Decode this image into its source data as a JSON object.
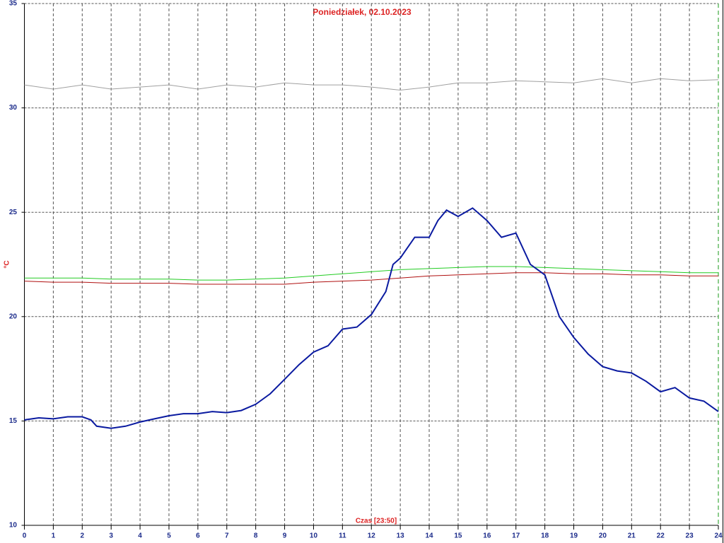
{
  "chart_data": {
    "type": "line",
    "title": "Poniedziałek, 02.10.2023",
    "y_label": "°C",
    "x_label": "Czas [23:50]",
    "xlim": [
      0,
      24
    ],
    "xticks": [
      0,
      1,
      2,
      3,
      4,
      5,
      6,
      7,
      8,
      9,
      10,
      11,
      12,
      13,
      14,
      15,
      16,
      17,
      18,
      19,
      20,
      21,
      22,
      23,
      24
    ],
    "ylim": [
      10,
      35
    ],
    "yticks": [
      10,
      15,
      20,
      25,
      30,
      35
    ],
    "grid": true,
    "series": [
      {
        "color": "#a0a0a0",
        "width": 1,
        "x": [
          0,
          1,
          2,
          3,
          4,
          5,
          6,
          7,
          8,
          9,
          10,
          11,
          12,
          13,
          14,
          15,
          16,
          17,
          18,
          19,
          20,
          21,
          22,
          23,
          24
        ],
        "values": [
          31.1,
          30.9,
          31.1,
          30.9,
          31.0,
          31.1,
          30.9,
          31.1,
          31.0,
          31.2,
          31.1,
          31.1,
          31.0,
          30.85,
          31.0,
          31.2,
          31.2,
          31.3,
          31.25,
          31.2,
          31.4,
          31.2,
          31.4,
          31.3,
          31.35
        ]
      },
      {
        "color": "#22cc22",
        "width": 1,
        "x": [
          0,
          1,
          2,
          3,
          4,
          5,
          6,
          7,
          8,
          9,
          10,
          11,
          12,
          13,
          14,
          15,
          16,
          17,
          18,
          19,
          20,
          21,
          22,
          23,
          24
        ],
        "values": [
          21.85,
          21.85,
          21.85,
          21.8,
          21.8,
          21.8,
          21.75,
          21.75,
          21.8,
          21.85,
          21.95,
          22.05,
          22.15,
          22.25,
          22.3,
          22.35,
          22.4,
          22.4,
          22.35,
          22.3,
          22.25,
          22.2,
          22.15,
          22.1,
          22.1
        ]
      },
      {
        "color": "#b01010",
        "width": 1,
        "x": [
          0,
          1,
          2,
          3,
          4,
          5,
          6,
          7,
          8,
          9,
          10,
          11,
          12,
          13,
          14,
          15,
          16,
          17,
          18,
          19,
          20,
          21,
          22,
          23,
          24
        ],
        "values": [
          21.7,
          21.65,
          21.65,
          21.6,
          21.6,
          21.6,
          21.55,
          21.55,
          21.55,
          21.55,
          21.65,
          21.7,
          21.75,
          21.85,
          21.95,
          22.0,
          22.05,
          22.1,
          22.1,
          22.05,
          22.05,
          22.0,
          22.0,
          21.95,
          21.95
        ]
      },
      {
        "color": "#0a1aa0",
        "width": 2,
        "x": [
          0,
          0.5,
          1,
          1.5,
          2,
          2.3,
          2.5,
          3,
          3.5,
          4,
          4.5,
          5,
          5.5,
          6,
          6.5,
          7,
          7.5,
          8,
          8.5,
          9,
          9.5,
          10,
          10.5,
          11,
          11.5,
          12,
          12.5,
          12.75,
          13,
          13.5,
          14,
          14.3,
          14.6,
          15,
          15.5,
          16,
          16.5,
          17,
          17.5,
          18,
          18.5,
          19,
          19.5,
          20,
          20.5,
          21,
          21.5,
          22,
          22.5,
          23,
          23.5,
          24
        ],
        "values": [
          15.05,
          15.15,
          15.1,
          15.2,
          15.2,
          15.05,
          14.75,
          14.65,
          14.75,
          14.95,
          15.1,
          15.25,
          15.35,
          15.35,
          15.45,
          15.4,
          15.5,
          15.8,
          16.3,
          17.0,
          17.7,
          18.3,
          18.6,
          19.4,
          19.5,
          20.1,
          21.2,
          22.5,
          22.8,
          23.8,
          23.8,
          24.6,
          25.1,
          24.8,
          25.2,
          24.6,
          23.8,
          24.0,
          22.5,
          22.0,
          20.0,
          19.0,
          18.2,
          17.6,
          17.4,
          17.3,
          16.9,
          16.4,
          16.6,
          16.1,
          15.95,
          15.45
        ]
      }
    ]
  }
}
